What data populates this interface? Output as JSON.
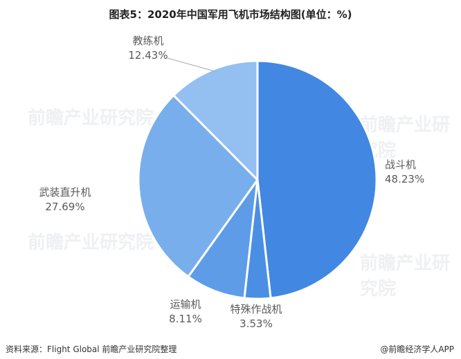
{
  "header": {
    "title": "图表5：2020年中国军用飞机市场结构图(单位：%)"
  },
  "chart_data": {
    "type": "pie",
    "title": "图表5：2020年中国军用飞机市场结构图(单位：%)",
    "slices": [
      {
        "label": "战斗机",
        "value": 48.23,
        "display": "48.23%",
        "color": "#4287e2"
      },
      {
        "label": "特殊作战机",
        "value": 3.53,
        "display": "3.53%",
        "color": "#4a8fe4"
      },
      {
        "label": "运输机",
        "value": 8.11,
        "display": "8.11%",
        "color": "#5e9ce8"
      },
      {
        "label": "武装直升机",
        "value": 27.69,
        "display": "27.69%",
        "color": "#78aeec"
      },
      {
        "label": "教练机",
        "value": 12.43,
        "display": "12.43%",
        "color": "#93bff1"
      }
    ],
    "legend": "none"
  },
  "watermark": {
    "text": "前瞻产业研究院"
  },
  "footer": {
    "source": "资料来源：Flight Global 前瞻产业研究院整理",
    "brand": "@前瞻经济学人APP"
  }
}
